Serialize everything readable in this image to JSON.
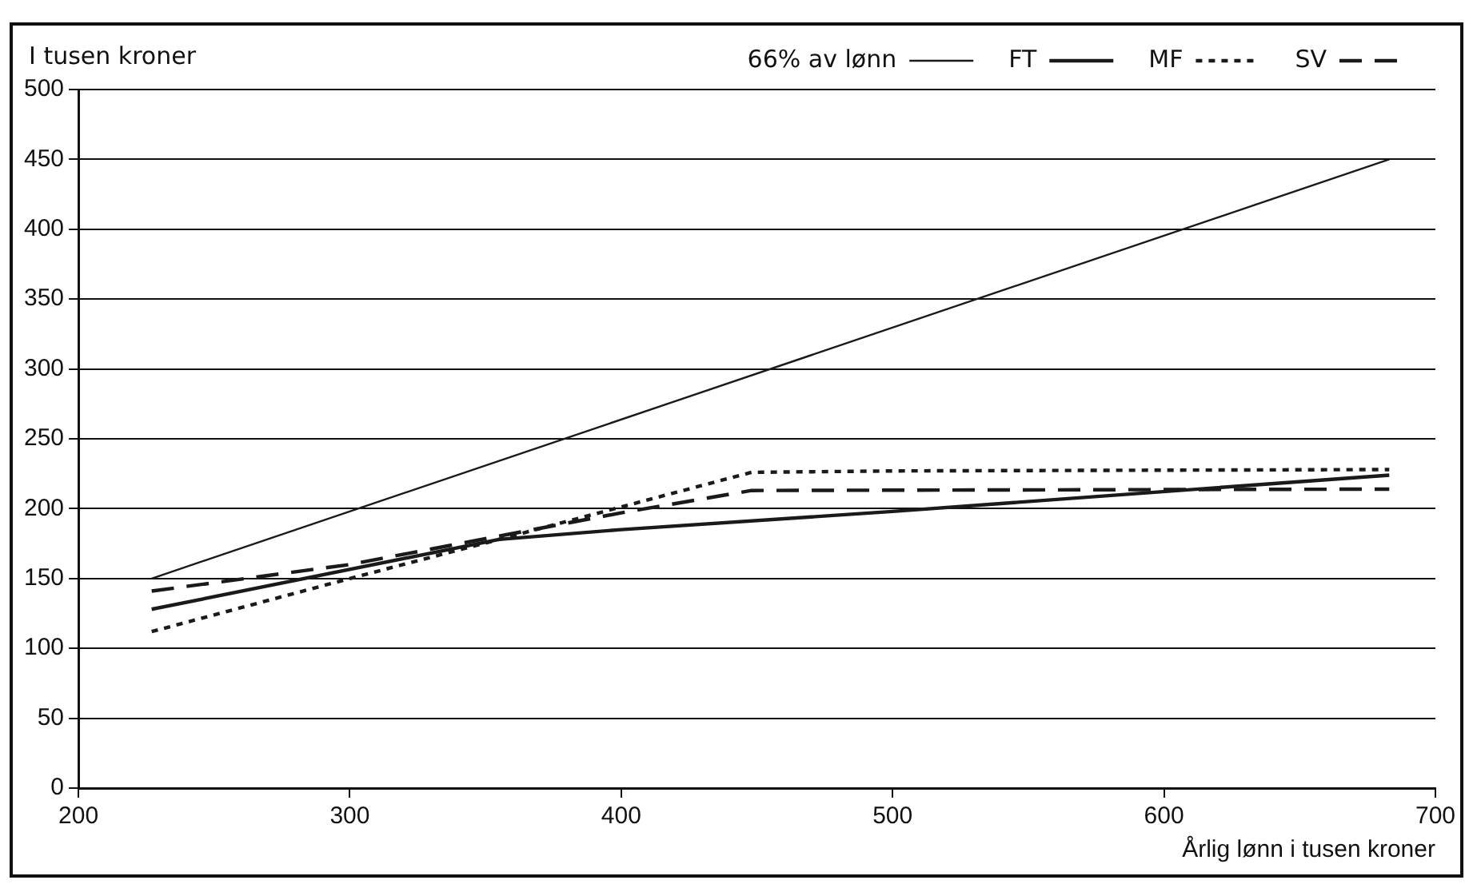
{
  "chart_data": {
    "type": "line",
    "ylabel": "I tusen kroner",
    "xlabel": "Årlig lønn i tusen kroner",
    "xlim": [
      200,
      700
    ],
    "xticks": [
      200,
      300,
      400,
      500,
      600,
      700
    ],
    "ylim": [
      0,
      500
    ],
    "yticks": [
      0,
      50,
      100,
      150,
      200,
      250,
      300,
      350,
      400,
      450,
      500
    ],
    "grid": "y",
    "legend": "top",
    "marker": "none",
    "series": [
      {
        "name": "66% av lønn",
        "color": "#1a1a1a",
        "line_style": "solid",
        "x": [
          227,
          683
        ],
        "values": [
          150,
          450
        ]
      },
      {
        "name": "FT",
        "color": "#1a1a1a",
        "line_style": "solid",
        "x": [
          227,
          355,
          400,
          500,
          683
        ],
        "values": [
          128,
          178,
          185,
          198,
          224
        ]
      },
      {
        "name": "MF",
        "color": "#1a1a1a",
        "line_style": "dotted",
        "x": [
          227,
          300,
          355,
          448,
          500,
          683
        ],
        "values": [
          112,
          150,
          178,
          226,
          227,
          228
        ]
      },
      {
        "name": "SV",
        "color": "#1a1a1a",
        "line_style": "dashed",
        "x": [
          227,
          300,
          400,
          448,
          683
        ],
        "values": [
          141,
          160,
          197,
          213,
          214
        ]
      }
    ]
  }
}
